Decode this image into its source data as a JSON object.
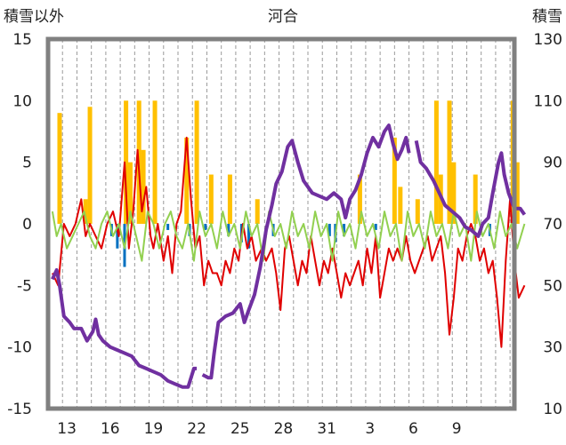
{
  "chart_data": {
    "type": "line",
    "title": "河合",
    "left_axis_label": "積雪以外",
    "right_axis_label": "積雪",
    "left_ylim": [
      -15,
      15
    ],
    "right_ylim": [
      10,
      130
    ],
    "left_ticks": [
      "15",
      "10",
      "5",
      "0",
      "-5",
      "-10",
      "-15"
    ],
    "right_ticks": [
      "130",
      "110",
      "90",
      "70",
      "50",
      "30",
      "10"
    ],
    "x_tick_labels": [
      "13",
      "16",
      "19",
      "22",
      "25",
      "28",
      "31",
      "3",
      "6",
      "9"
    ],
    "x_range_days": 30,
    "grid": "vertical dashed, daily",
    "colors": {
      "snow_depth": "#7030a0",
      "temperature": "#e00000",
      "precipitation": "#ffc000",
      "snow_change": "#92d050",
      "negative_bars": "#0070c0",
      "frame": "#808080"
    },
    "series": [
      {
        "key": "snow_depth",
        "axis": "right",
        "points": [
          [
            0,
            52
          ],
          [
            0.3,
            55
          ],
          [
            0.5,
            50
          ],
          [
            0.8,
            40
          ],
          [
            1.2,
            38
          ],
          [
            1.5,
            36
          ],
          [
            2,
            36
          ],
          [
            2.4,
            32
          ],
          [
            2.8,
            35
          ],
          [
            3,
            39
          ],
          [
            3.2,
            34
          ],
          [
            3.5,
            32
          ],
          [
            4,
            30
          ],
          [
            4.5,
            29
          ],
          [
            5,
            28
          ],
          [
            5.5,
            27
          ],
          [
            6,
            24
          ],
          [
            6.5,
            23
          ],
          [
            7,
            22
          ],
          [
            7.5,
            21
          ],
          [
            8,
            19
          ],
          [
            8.5,
            18
          ],
          [
            9,
            17
          ],
          [
            9.4,
            17
          ],
          [
            9.8,
            23
          ],
          [
            10,
            23
          ],
          [
            null,
            null
          ],
          [
            10.4,
            21
          ],
          [
            10.8,
            20
          ],
          [
            11,
            20
          ],
          [
            11.2,
            28
          ],
          [
            11.5,
            38
          ],
          [
            12,
            40
          ],
          [
            12.5,
            41
          ],
          [
            13,
            44
          ],
          [
            13.3,
            38
          ],
          [
            13.6,
            42
          ],
          [
            14,
            47
          ],
          [
            14.4,
            56
          ],
          [
            14.8,
            68
          ],
          [
            15.2,
            76
          ],
          [
            15.5,
            83
          ],
          [
            15.9,
            87
          ],
          [
            16.3,
            95
          ],
          [
            16.6,
            97
          ],
          [
            17,
            90
          ],
          [
            17.4,
            84
          ],
          [
            18,
            80
          ],
          [
            18.5,
            79
          ],
          [
            19,
            78
          ],
          [
            19.5,
            80
          ],
          [
            20,
            78
          ],
          [
            20.3,
            72
          ],
          [
            20.6,
            78
          ],
          [
            21,
            81
          ],
          [
            21.4,
            86
          ],
          [
            21.8,
            93
          ],
          [
            22.2,
            98
          ],
          [
            22.6,
            95
          ],
          [
            23,
            100
          ],
          [
            23.3,
            102
          ],
          [
            23.6,
            96
          ],
          [
            23.9,
            91
          ],
          [
            24.2,
            94
          ],
          [
            24.5,
            98
          ],
          [
            24.7,
            93
          ],
          [
            null,
            null
          ],
          [
            25.2,
            97
          ],
          [
            25.5,
            90
          ],
          [
            25.9,
            88
          ],
          [
            26.4,
            84
          ],
          [
            26.8,
            80
          ],
          [
            27.2,
            76
          ],
          [
            27.7,
            74
          ],
          [
            28.2,
            72
          ],
          [
            28.6,
            69
          ],
          [
            29,
            68
          ],
          [
            29.5,
            66
          ],
          [
            29.8,
            70
          ],
          [
            30.2,
            72
          ],
          [
            30.5,
            80
          ],
          [
            30.9,
            90
          ],
          [
            31.1,
            93
          ],
          [
            31.3,
            86
          ],
          [
            31.6,
            80
          ],
          [
            32,
            75
          ],
          [
            32.4,
            75
          ],
          [
            32.7,
            73
          ]
        ]
      },
      {
        "key": "temperature",
        "axis": "left",
        "points": [
          [
            0,
            -4
          ],
          [
            0.4,
            -5
          ],
          [
            0.8,
            0
          ],
          [
            1.2,
            -1
          ],
          [
            1.6,
            0
          ],
          [
            2,
            2
          ],
          [
            2.3,
            -1
          ],
          [
            2.6,
            0
          ],
          [
            3,
            -1
          ],
          [
            3.4,
            -2
          ],
          [
            3.8,
            0
          ],
          [
            4.2,
            1
          ],
          [
            4.6,
            -1
          ],
          [
            5,
            5
          ],
          [
            5.3,
            -2
          ],
          [
            5.6,
            1
          ],
          [
            5.9,
            6
          ],
          [
            6.2,
            1
          ],
          [
            6.5,
            3
          ],
          [
            6.8,
            -1
          ],
          [
            7,
            -2
          ],
          [
            7.3,
            0
          ],
          [
            7.7,
            -3
          ],
          [
            8,
            -1
          ],
          [
            8.3,
            -4
          ],
          [
            8.6,
            0
          ],
          [
            8.9,
            1
          ],
          [
            9.3,
            7
          ],
          [
            9.6,
            2
          ],
          [
            9.9,
            -2
          ],
          [
            10.2,
            -1
          ],
          [
            10.5,
            -5
          ],
          [
            10.8,
            -3
          ],
          [
            11.1,
            -4
          ],
          [
            11.4,
            -4
          ],
          [
            11.7,
            -5
          ],
          [
            12,
            -3
          ],
          [
            12.3,
            -4
          ],
          [
            12.6,
            -2
          ],
          [
            12.9,
            -3
          ],
          [
            13.2,
            0
          ],
          [
            13.5,
            -2
          ],
          [
            13.8,
            -1
          ],
          [
            14.1,
            -3
          ],
          [
            14.5,
            -2
          ],
          [
            14.8,
            -3
          ],
          [
            15.2,
            -2
          ],
          [
            15.5,
            -4
          ],
          [
            15.8,
            -7
          ],
          [
            16.1,
            -2
          ],
          [
            16.4,
            -1
          ],
          [
            16.7,
            -3
          ],
          [
            17,
            -5
          ],
          [
            17.3,
            -3
          ],
          [
            17.6,
            -4
          ],
          [
            17.9,
            -1
          ],
          [
            18.2,
            -3
          ],
          [
            18.5,
            -5
          ],
          [
            18.8,
            -3
          ],
          [
            19.1,
            -4
          ],
          [
            19.4,
            -2
          ],
          [
            19.7,
            -4
          ],
          [
            20,
            -6
          ],
          [
            20.3,
            -4
          ],
          [
            20.6,
            -5
          ],
          [
            20.9,
            -4
          ],
          [
            21.2,
            -3
          ],
          [
            21.5,
            -5
          ],
          [
            21.8,
            -2
          ],
          [
            22.1,
            -4
          ],
          [
            22.4,
            -1
          ],
          [
            22.7,
            -6
          ],
          [
            23,
            -4
          ],
          [
            23.3,
            -2
          ],
          [
            23.6,
            -3
          ],
          [
            23.9,
            -2
          ],
          [
            24.2,
            -3
          ],
          [
            24.5,
            -1
          ],
          [
            24.8,
            -3
          ],
          [
            25.1,
            -4
          ],
          [
            25.4,
            -3
          ],
          [
            25.7,
            -2
          ],
          [
            26,
            -1
          ],
          [
            26.3,
            -3
          ],
          [
            26.6,
            -2
          ],
          [
            26.9,
            -1
          ],
          [
            27.2,
            -4
          ],
          [
            27.5,
            -9
          ],
          [
            27.8,
            -6
          ],
          [
            28.1,
            -2
          ],
          [
            28.4,
            -3
          ],
          [
            28.7,
            -1
          ],
          [
            29,
            0
          ],
          [
            29.3,
            -1
          ],
          [
            29.6,
            -3
          ],
          [
            29.9,
            -2
          ],
          [
            30.2,
            -4
          ],
          [
            30.5,
            -3
          ],
          [
            30.8,
            -6
          ],
          [
            31.1,
            -10
          ],
          [
            31.4,
            -3
          ],
          [
            31.7,
            2
          ],
          [
            32,
            -3
          ],
          [
            32.3,
            -6
          ],
          [
            32.7,
            -5
          ]
        ]
      },
      {
        "key": "snow_change",
        "axis": "left",
        "points": [
          [
            0,
            1
          ],
          [
            0.3,
            -1
          ],
          [
            0.6,
            0
          ],
          [
            1,
            -2
          ],
          [
            1.4,
            -1
          ],
          [
            1.8,
            0
          ],
          [
            2.2,
            1
          ],
          [
            2.6,
            -1
          ],
          [
            3,
            -2
          ],
          [
            3.4,
            0
          ],
          [
            3.8,
            1
          ],
          [
            4.2,
            -1
          ],
          [
            4.6,
            0
          ],
          [
            5,
            -2
          ],
          [
            5.4,
            1
          ],
          [
            5.8,
            -1
          ],
          [
            6.2,
            -3
          ],
          [
            6.6,
            1
          ],
          [
            7,
            0
          ],
          [
            7.4,
            -2
          ],
          [
            7.8,
            0
          ],
          [
            8.2,
            1
          ],
          [
            8.6,
            -1
          ],
          [
            9,
            -2
          ],
          [
            9.4,
            0
          ],
          [
            9.8,
            -3
          ],
          [
            10.2,
            1
          ],
          [
            10.6,
            -1
          ],
          [
            11,
            0
          ],
          [
            11.4,
            -2
          ],
          [
            11.8,
            1
          ],
          [
            12.2,
            -1
          ],
          [
            12.6,
            0
          ],
          [
            13,
            -2
          ],
          [
            13.4,
            1
          ],
          [
            13.8,
            -1
          ],
          [
            14.2,
            0
          ],
          [
            14.6,
            -3
          ],
          [
            15,
            1
          ],
          [
            15.4,
            -1
          ],
          [
            15.8,
            0
          ],
          [
            16.2,
            -2
          ],
          [
            16.6,
            1
          ],
          [
            17,
            -1
          ],
          [
            17.4,
            0
          ],
          [
            17.8,
            -2
          ],
          [
            18.2,
            1
          ],
          [
            18.6,
            -1
          ],
          [
            19,
            0
          ],
          [
            19.4,
            -3
          ],
          [
            19.8,
            1
          ],
          [
            20.2,
            -1
          ],
          [
            20.6,
            0
          ],
          [
            21,
            -2
          ],
          [
            21.4,
            1
          ],
          [
            21.8,
            -1
          ],
          [
            22.2,
            0
          ],
          [
            22.6,
            -2
          ],
          [
            23,
            1
          ],
          [
            23.4,
            -1
          ],
          [
            23.8,
            0
          ],
          [
            24.2,
            -3
          ],
          [
            24.6,
            1
          ],
          [
            25,
            -1
          ],
          [
            25.4,
            0
          ],
          [
            25.8,
            -2
          ],
          [
            26.2,
            1
          ],
          [
            26.6,
            -1
          ],
          [
            27,
            0
          ],
          [
            27.4,
            -2
          ],
          [
            27.8,
            1
          ],
          [
            28.2,
            -1
          ],
          [
            28.6,
            0
          ],
          [
            29,
            -3
          ],
          [
            29.4,
            1
          ],
          [
            29.8,
            -1
          ],
          [
            30.2,
            0
          ],
          [
            30.6,
            -2
          ],
          [
            31,
            1
          ],
          [
            31.4,
            -1
          ],
          [
            31.8,
            0
          ],
          [
            32.2,
            -2
          ],
          [
            32.7,
            0
          ]
        ]
      }
    ],
    "precipitation_bars": [
      [
        0.5,
        9
      ],
      [
        2.3,
        2
      ],
      [
        2.6,
        9.5
      ],
      [
        5.1,
        10
      ],
      [
        5.4,
        5
      ],
      [
        6.0,
        10
      ],
      [
        6.3,
        6
      ],
      [
        7.1,
        10
      ],
      [
        9.3,
        7
      ],
      [
        10.0,
        10
      ],
      [
        11.0,
        4
      ],
      [
        12.3,
        4
      ],
      [
        14.2,
        2
      ],
      [
        21.3,
        4
      ],
      [
        23.7,
        7
      ],
      [
        24.1,
        3
      ],
      [
        25.3,
        2
      ],
      [
        26.6,
        10
      ],
      [
        26.9,
        4
      ],
      [
        27.5,
        10
      ],
      [
        27.8,
        5
      ],
      [
        29.3,
        4
      ],
      [
        31.9,
        10
      ],
      [
        32.2,
        5
      ]
    ],
    "negative_bars": [
      [
        4.1,
        -1
      ],
      [
        4.5,
        -2
      ],
      [
        5.0,
        -3.5
      ],
      [
        8.0,
        -0.5
      ],
      [
        9.5,
        -1
      ],
      [
        10.6,
        -0.5
      ],
      [
        12.2,
        -1
      ],
      [
        13.1,
        -1.5
      ],
      [
        13.6,
        -2
      ],
      [
        15.3,
        -1
      ],
      [
        19.2,
        -1
      ],
      [
        19.6,
        -1.5
      ],
      [
        20.2,
        -1
      ],
      [
        22.4,
        -0.5
      ],
      [
        29.7,
        -0.5
      ],
      [
        30.3,
        -1
      ]
    ]
  }
}
